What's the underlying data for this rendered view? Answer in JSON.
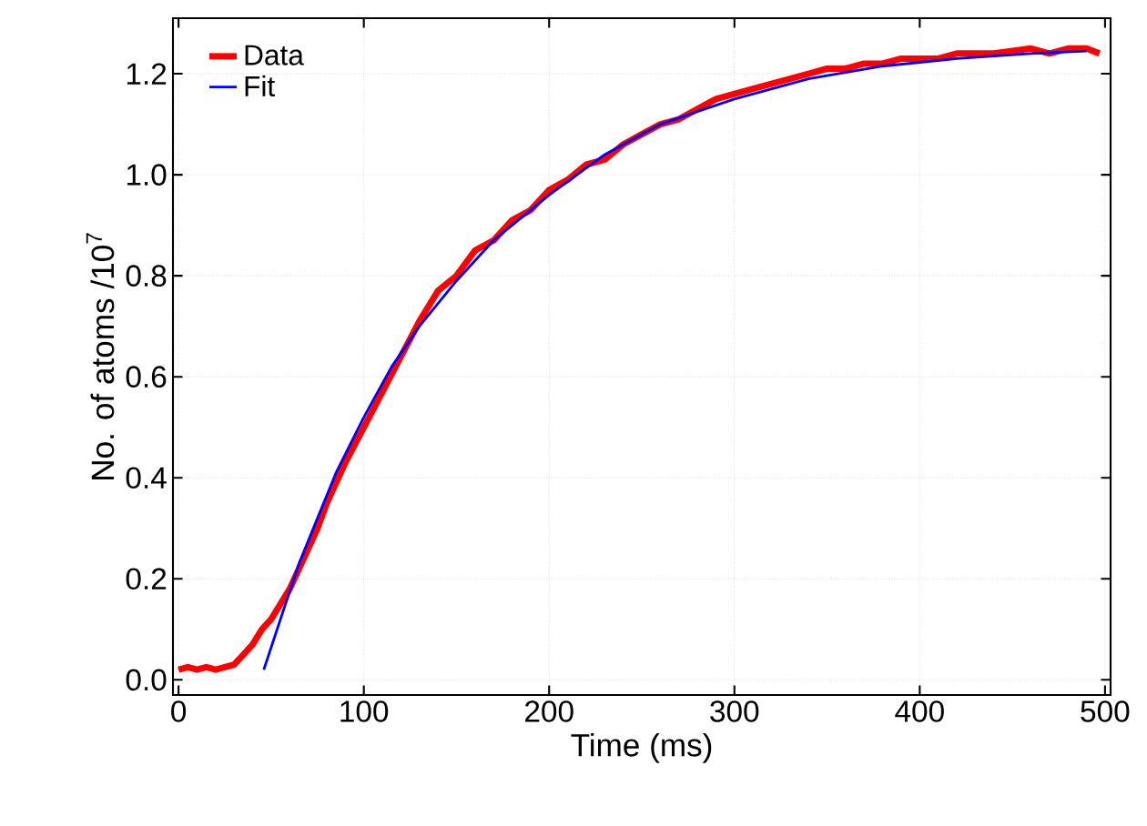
{
  "chart_data": {
    "type": "line",
    "xlabel": "Time (ms)",
    "ylabel": "No. of atoms /10$^{7}$",
    "xlim": [
      -3,
      503
    ],
    "ylim": [
      -0.03,
      1.31
    ],
    "xticks": [
      0,
      100,
      200,
      300,
      400,
      500
    ],
    "yticks": [
      {
        "value": 0,
        "label": "0.0"
      },
      0.2,
      0.4,
      0.6,
      0.8,
      {
        "value": 1,
        "label": "1.0"
      },
      1.2
    ],
    "grid": true,
    "legend": "top left",
    "series": [
      {
        "name": "Data",
        "color": "#ff0000",
        "x": [
          0,
          5,
          10,
          15,
          20,
          25,
          30,
          35,
          40,
          45,
          50,
          55,
          60,
          65,
          70,
          75,
          80,
          90,
          100,
          110,
          120,
          130,
          140,
          150,
          160,
          170,
          180,
          190,
          200,
          210,
          220,
          230,
          240,
          250,
          260,
          270,
          280,
          290,
          300,
          310,
          320,
          330,
          340,
          350,
          360,
          370,
          380,
          390,
          400,
          410,
          420,
          430,
          440,
          450,
          460,
          470,
          480,
          490,
          497
        ],
        "values": [
          0.02,
          0.025,
          0.02,
          0.025,
          0.02,
          0.025,
          0.03,
          0.05,
          0.07,
          0.1,
          0.12,
          0.15,
          0.18,
          0.22,
          0.26,
          0.3,
          0.35,
          0.43,
          0.5,
          0.57,
          0.64,
          0.71,
          0.77,
          0.8,
          0.85,
          0.87,
          0.91,
          0.93,
          0.97,
          0.99,
          1.02,
          1.03,
          1.06,
          1.08,
          1.1,
          1.11,
          1.13,
          1.15,
          1.16,
          1.17,
          1.18,
          1.19,
          1.2,
          1.21,
          1.21,
          1.22,
          1.22,
          1.23,
          1.23,
          1.23,
          1.24,
          1.24,
          1.24,
          1.245,
          1.25,
          1.24,
          1.25,
          1.25,
          1.24
        ]
      },
      {
        "name": "Fit",
        "color": "#0000ff",
        "x": [
          46,
          55,
          65,
          75,
          85,
          100,
          115,
          130,
          150,
          170,
          200,
          230,
          260,
          300,
          340,
          380,
          420,
          460,
          490
        ],
        "values": [
          0.02,
          0.12,
          0.23,
          0.32,
          0.41,
          0.52,
          0.62,
          0.7,
          0.79,
          0.87,
          0.96,
          1.04,
          1.1,
          1.15,
          1.19,
          1.215,
          1.23,
          1.24,
          1.245
        ]
      }
    ]
  }
}
